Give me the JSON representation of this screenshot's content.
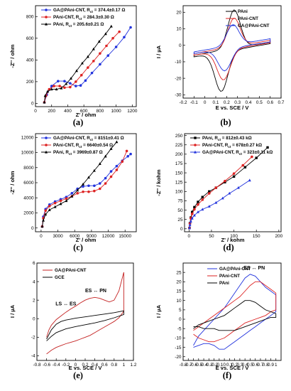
{
  "chart_data": [
    {
      "id": "a",
      "caption": "(a)",
      "type": "line",
      "xlabel": "Z' / ohm",
      "ylabel": "-Z'' / ohm",
      "xlim": [
        0,
        1250
      ],
      "ylim": [
        -30,
        900
      ],
      "xticks": [
        0,
        200,
        400,
        600,
        800,
        1000,
        1200
      ],
      "yticks": [
        0,
        200,
        400,
        600,
        800
      ],
      "series": [
        {
          "name": "GA@PAni-CNT, R",
          "name_sub": "ct",
          "name_rest": " = 374.4±0.17 Ω",
          "color": "#2233dd",
          "marker": "circle",
          "x": [
            110,
            140,
            200,
            280,
            360,
            430,
            500,
            560,
            620,
            700,
            800,
            900,
            1000,
            1100,
            1180
          ],
          "y": [
            10,
            80,
            160,
            205,
            205,
            185,
            160,
            165,
            210,
            280,
            360,
            440,
            520,
            610,
            700
          ]
        },
        {
          "name": "PAni-CNT, R",
          "name_sub": "ct",
          "name_rest": " = 284.3±0.30 Ω",
          "color": "#dd2222",
          "marker": "circle",
          "x": [
            110,
            130,
            170,
            230,
            300,
            360,
            430,
            500,
            570,
            650,
            720,
            800,
            880,
            960,
            1040
          ],
          "y": [
            10,
            70,
            130,
            160,
            160,
            145,
            150,
            200,
            260,
            330,
            390,
            460,
            530,
            600,
            660
          ]
        },
        {
          "name": "PAni, R",
          "name_sub": "ct",
          "name_rest": " = 205.6±0.21 Ω",
          "color": "#000000",
          "marker": "triangle",
          "x": [
            110,
            120,
            150,
            200,
            260,
            320,
            380,
            440,
            510,
            580,
            650,
            720,
            790,
            870,
            940
          ],
          "y": [
            10,
            70,
            110,
            130,
            130,
            140,
            180,
            230,
            300,
            370,
            430,
            500,
            570,
            640,
            710
          ]
        }
      ]
    },
    {
      "id": "b",
      "caption": "(b)",
      "type": "line",
      "xlabel": "E vs. SCE / V",
      "ylabel": "I / µA",
      "xlim": [
        -0.2,
        0.7
      ],
      "ylim": [
        -32,
        24
      ],
      "xticks": [
        -0.2,
        -0.1,
        0.0,
        0.1,
        0.2,
        0.3,
        0.4,
        0.5,
        0.6,
        0.7
      ],
      "yticks": [
        -30,
        -20,
        -10,
        0,
        10,
        20
      ],
      "series": [
        {
          "name": "PAni",
          "color": "#000000",
          "cv": {
            "peak_a": [
              0.27,
              21.5
            ],
            "peak_c": [
              0.15,
              -28
            ],
            "base_a": [
              -6,
              2
            ],
            "base_c": [
              -7,
              1
            ]
          }
        },
        {
          "name": "PAni-CNT",
          "color": "#dd2222",
          "cv": {
            "peak_a": [
              0.27,
              16.5
            ],
            "peak_c": [
              0.17,
              -21
            ],
            "base_a": [
              -5,
              3
            ],
            "base_c": [
              -6,
              1.5
            ]
          }
        },
        {
          "name": "GA@PAni-CNT",
          "color": "#2233dd",
          "cv": {
            "peak_a": [
              0.26,
              12.5
            ],
            "peak_c": [
              0.18,
              -15.5
            ],
            "base_a": [
              -4,
              4
            ],
            "base_c": [
              -5,
              2
            ]
          }
        }
      ]
    },
    {
      "id": "c",
      "caption": "(c)",
      "type": "line",
      "xlabel": "Z' / ohm",
      "ylabel": "-Z'' / ohm",
      "xlim": [
        -1000,
        17000
      ],
      "ylim": [
        -500,
        12500
      ],
      "xticks": [
        0,
        3000,
        6000,
        9000,
        12000,
        15000
      ],
      "yticks": [
        0,
        2000,
        4000,
        6000,
        8000,
        10000,
        12000
      ],
      "series": [
        {
          "name": "GA@PAni-CNT, R",
          "name_sub": "ct",
          "name_rest": " = 8151±0.41 Ω",
          "color": "#2233dd",
          "marker": "circle",
          "x": [
            200,
            400,
            800,
            1500,
            2500,
            3500,
            4500,
            5500,
            6500,
            7500,
            8500,
            9500,
            10500,
            11500,
            12500,
            13500,
            14500,
            15500,
            16000
          ],
          "y": [
            200,
            1500,
            2500,
            3100,
            3500,
            3800,
            4100,
            4600,
            5200,
            5500,
            5600,
            5600,
            5900,
            6600,
            7500,
            8200,
            8900,
            9500,
            9800
          ]
        },
        {
          "name": "PAni-CNT, R",
          "name_sub": "ct",
          "name_rest": " = 6640±0.54 Ω",
          "color": "#dd2222",
          "marker": "circle",
          "x": [
            200,
            400,
            800,
            1500,
            2500,
            3500,
            4500,
            5500,
            6500,
            7500,
            8500,
            9500,
            10500,
            11500,
            12500,
            13500,
            14500,
            15300
          ],
          "y": [
            200,
            1300,
            2300,
            2900,
            3300,
            3600,
            3900,
            4200,
            4600,
            4800,
            4800,
            4900,
            5200,
            5900,
            6800,
            7700,
            8800,
            10200
          ]
        },
        {
          "name": "PAni, R",
          "name_sub": "ct",
          "name_rest": " = 3969±0.87 Ω",
          "color": "#000000",
          "marker": "triangle",
          "x": [
            200,
            400,
            800,
            1500,
            2500,
            3500,
            4500,
            5500,
            6500,
            7500,
            8500,
            9500,
            10500,
            11500,
            12500,
            13500
          ],
          "y": [
            200,
            1000,
            1800,
            2400,
            2800,
            3200,
            3600,
            4200,
            5000,
            5800,
            6700,
            7600,
            8500,
            9500,
            10500,
            11400
          ]
        }
      ]
    },
    {
      "id": "d",
      "caption": "(d)",
      "type": "line",
      "xlabel": "Z' / kohm",
      "ylabel": "-Z'' / kohm",
      "xlim": [
        -10,
        205
      ],
      "ylim": [
        -8,
        255
      ],
      "xticks": [
        0,
        50,
        100,
        150,
        200
      ],
      "yticks": [
        0,
        25,
        50,
        75,
        100,
        125,
        150,
        175,
        200,
        225,
        250
      ],
      "series": [
        {
          "name": "PAni, R",
          "name_sub": "ct",
          "name_rest": " = 812±0.43 kΩ",
          "color": "#000000",
          "marker": "square",
          "x": [
            1,
            2,
            4,
            7,
            12,
            20,
            30,
            45,
            60,
            80,
            100,
            125,
            150,
            175
          ],
          "y": [
            2,
            15,
            30,
            45,
            58,
            72,
            85,
            100,
            110,
            125,
            140,
            165,
            190,
            218
          ]
        },
        {
          "name": "PAni-CNT, R",
          "name_sub": "ct",
          "name_rest": " = 678±0.27 kΩ",
          "color": "#dd2222",
          "marker": "circle",
          "x": [
            1,
            2,
            4,
            7,
            12,
            20,
            30,
            45,
            60,
            80,
            100,
            120,
            140
          ],
          "y": [
            2,
            14,
            28,
            40,
            52,
            65,
            78,
            95,
            110,
            128,
            148,
            170,
            193
          ]
        },
        {
          "name": "GA@PAni-CNT, R",
          "name_sub": "ct",
          "name_rest": " = 323±0.11 kΩ",
          "color": "#2233dd",
          "marker": "triangle",
          "x": [
            1,
            2,
            4,
            7,
            12,
            20,
            30,
            45,
            60,
            75,
            90,
            110,
            135
          ],
          "y": [
            2,
            10,
            20,
            28,
            36,
            45,
            52,
            60,
            70,
            82,
            95,
            110,
            130
          ]
        }
      ]
    },
    {
      "id": "e",
      "caption": "(e)",
      "type": "line",
      "xlabel": "E vs. SCE / V",
      "ylabel": "I / µA",
      "xlim": [
        -0.8,
        1.2
      ],
      "ylim": [
        -4.5,
        6
      ],
      "xticks": [
        -0.8,
        -0.6,
        -0.4,
        -0.2,
        0.0,
        0.2,
        0.4,
        0.6,
        0.8,
        1.0,
        1.2
      ],
      "yticks": [
        -4,
        -2,
        0,
        2,
        4,
        6
      ],
      "annotations": [
        {
          "text": "ES ↔ PN",
          "x": 0.42,
          "y": 2.85
        },
        {
          "text": "LS ↔ ES",
          "x": -0.2,
          "y": 1.45
        }
      ],
      "series": [
        {
          "name": "GA@PAni-CNT",
          "color": "#c42222",
          "x": [
            -0.6,
            -0.55,
            -0.5,
            -0.4,
            -0.3,
            -0.2,
            -0.1,
            0.0,
            0.1,
            0.2,
            0.3,
            0.4,
            0.5,
            0.6,
            0.7,
            0.8,
            0.9,
            1.0,
            1.0,
            0.9,
            0.8,
            0.7,
            0.6,
            0.5,
            0.4,
            0.3,
            0.2,
            0.1,
            0.0,
            -0.1,
            -0.2,
            -0.3,
            -0.4,
            -0.5,
            -0.55,
            -0.6
          ],
          "y": [
            -2.0,
            -1.2,
            -0.7,
            -0.1,
            0.3,
            0.7,
            1.05,
            1.35,
            1.7,
            2.0,
            2.2,
            2.3,
            2.2,
            2.0,
            1.8,
            2.0,
            3.0,
            5.0,
            0.8,
            0.1,
            -0.3,
            -0.6,
            -0.9,
            -1.2,
            -1.5,
            -1.8,
            -2.0,
            -2.2,
            -2.4,
            -2.55,
            -2.7,
            -2.9,
            -3.1,
            -3.4,
            -3.6,
            -3.8
          ]
        },
        {
          "name": "GCE",
          "color": "#000000",
          "x": [
            -0.6,
            -0.5,
            -0.4,
            -0.3,
            -0.2,
            -0.1,
            0.0,
            0.2,
            0.4,
            0.6,
            0.8,
            1.0,
            1.0,
            0.8,
            0.6,
            0.4,
            0.2,
            0.0,
            -0.2,
            -0.4,
            -0.5,
            -0.6
          ],
          "y": [
            -2.2,
            -1.2,
            -0.6,
            -0.3,
            -0.15,
            -0.05,
            0.05,
            0.2,
            0.35,
            0.5,
            0.65,
            0.85,
            0.45,
            0.1,
            -0.2,
            -0.45,
            -0.65,
            -0.85,
            -1.1,
            -1.5,
            -1.9,
            -2.4
          ]
        }
      ]
    },
    {
      "id": "f",
      "caption": "(f)",
      "type": "line",
      "xlabel": "E vs. SCE / V",
      "ylabel": "I / µA",
      "xlim": [
        -0.8,
        1.1
      ],
      "ylim": [
        -22,
        30
      ],
      "xticks": [
        -0.8,
        -0.7,
        -0.6,
        -0.5,
        -0.4,
        -0.3,
        -0.2,
        -0.1,
        0.0,
        0.1,
        0.2,
        0.3,
        0.4,
        0.5,
        0.6,
        0.7,
        0.8,
        0.9,
        1.0
      ],
      "yticks": [
        -20,
        -15,
        -10,
        -5,
        0,
        5,
        10,
        15,
        20,
        25
      ],
      "annotations": [
        {
          "text": "ES ↔ PN",
          "x": 0.58,
          "y": 26.5
        }
      ],
      "series": [
        {
          "name": "GA@PAni-CNT",
          "color": "#2233dd",
          "x": [
            -0.6,
            -0.5,
            -0.4,
            -0.3,
            -0.2,
            -0.1,
            0.0,
            0.1,
            0.2,
            0.3,
            0.4,
            0.5,
            0.6,
            0.7,
            0.8,
            0.9,
            1.0,
            1.0,
            0.9,
            0.8,
            0.7,
            0.6,
            0.5,
            0.4,
            0.3,
            0.2,
            0.1,
            0.0,
            -0.1,
            -0.2,
            -0.3,
            -0.4,
            -0.5,
            -0.6
          ],
          "y": [
            -14,
            -9,
            -6,
            -3,
            0,
            3,
            6,
            10,
            14,
            18,
            22,
            24,
            23,
            20,
            17,
            15,
            13,
            4,
            2,
            0,
            -2,
            -4,
            -6,
            -8,
            -10,
            -12,
            -14,
            -16,
            -16,
            -14,
            -13,
            -13,
            -14,
            -15
          ]
        },
        {
          "name": "PAni-CNT",
          "color": "#dd2222",
          "x": [
            -0.6,
            -0.5,
            -0.4,
            -0.3,
            -0.2,
            -0.1,
            0.0,
            0.1,
            0.2,
            0.3,
            0.4,
            0.5,
            0.6,
            0.7,
            0.8,
            0.9,
            1.0,
            1.0,
            0.9,
            0.8,
            0.7,
            0.6,
            0.5,
            0.4,
            0.3,
            0.2,
            0.1,
            0.0,
            -0.1,
            -0.2,
            -0.3,
            -0.4,
            -0.5,
            -0.6
          ],
          "y": [
            -6,
            -4,
            -2,
            0,
            2,
            4,
            6,
            8,
            10,
            12,
            15,
            18,
            20,
            20,
            18,
            16,
            14,
            5,
            4,
            2,
            1,
            0,
            -1,
            -2,
            -4,
            -6,
            -8,
            -10,
            -11,
            -12,
            -12,
            -11,
            -10,
            -8
          ]
        },
        {
          "name": "PAni",
          "color": "#000000",
          "x": [
            -0.6,
            -0.5,
            -0.4,
            -0.3,
            -0.2,
            -0.1,
            0.0,
            0.1,
            0.2,
            0.3,
            0.4,
            0.5,
            0.6,
            0.7,
            0.8,
            0.9,
            1.0,
            1.0,
            0.9,
            0.8,
            0.7,
            0.6,
            0.5,
            0.4,
            0.3,
            0.2,
            0.1,
            0.0,
            -0.1,
            -0.2,
            -0.3,
            -0.4,
            -0.5,
            -0.6
          ],
          "y": [
            -5,
            -3,
            -2,
            -1,
            0,
            1,
            2,
            4,
            6,
            8,
            10,
            10,
            9,
            7,
            5,
            4,
            3,
            1,
            1,
            0,
            -1,
            -2,
            -3,
            -4,
            -5,
            -6,
            -6,
            -6,
            -6,
            -5,
            -5,
            -5,
            -4,
            -4
          ]
        }
      ]
    }
  ]
}
